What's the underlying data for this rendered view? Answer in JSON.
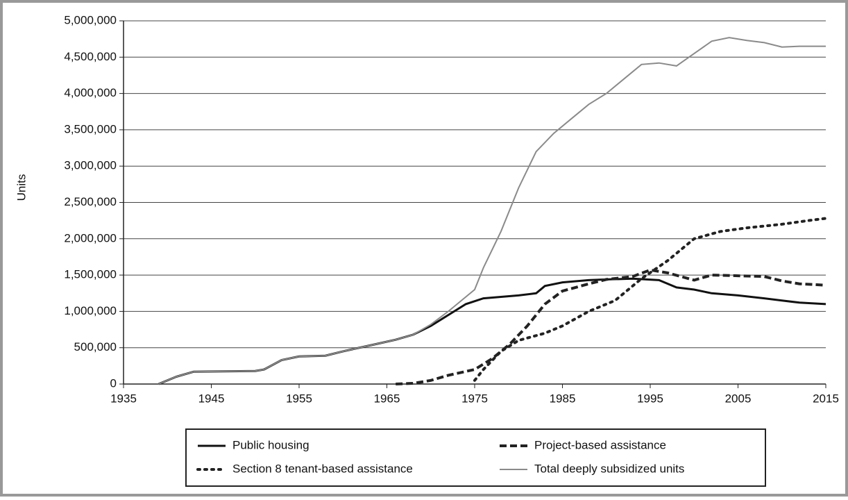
{
  "chart_data": {
    "type": "line",
    "y_label": "Units",
    "xlim": [
      1935,
      2015
    ],
    "xticks": [
      1935,
      1945,
      1955,
      1965,
      1975,
      1985,
      1995,
      2005,
      2015
    ],
    "ylim": [
      0,
      5000000
    ],
    "yticks": [
      0,
      {
        "value": 500000,
        "label": "500,000"
      },
      {
        "value": 1000000,
        "label": "1,000,000"
      },
      {
        "value": 1500000,
        "label": "1,500,000"
      },
      {
        "value": 2000000,
        "label": "2,000,000"
      },
      {
        "value": 2500000,
        "label": "2,500,000"
      },
      {
        "value": 3000000,
        "label": "3,000,000"
      },
      {
        "value": 3500000,
        "label": "3,500,000"
      },
      {
        "value": 4000000,
        "label": "4,000,000"
      },
      {
        "value": 4500000,
        "label": "4,500,000"
      },
      {
        "value": 5000000,
        "label": "5,000,000"
      }
    ],
    "grid": true,
    "legend": "bottom",
    "series": [
      {
        "name": "Public housing",
        "color": "#111111",
        "dash": "solid",
        "width": 3,
        "x": [
          1939,
          1941,
          1943,
          1950,
          1951,
          1953,
          1955,
          1958,
          1960,
          1963,
          1966,
          1968,
          1970,
          1972,
          1974,
          1976,
          1978,
          1980,
          1982,
          1983,
          1985,
          1988,
          1990,
          1993,
          1996,
          1998,
          2000,
          2002,
          2005,
          2008,
          2010,
          2012,
          2015
        ],
        "values": [
          0,
          100000,
          170000,
          180000,
          200000,
          330000,
          380000,
          390000,
          450000,
          530000,
          610000,
          680000,
          800000,
          950000,
          1100000,
          1180000,
          1200000,
          1220000,
          1250000,
          1350000,
          1400000,
          1430000,
          1440000,
          1450000,
          1430000,
          1330000,
          1300000,
          1250000,
          1220000,
          1180000,
          1150000,
          1120000,
          1100000
        ]
      },
      {
        "name": "Project-based assistance",
        "color": "#222222",
        "dash": "dashed",
        "width": 4,
        "x": [
          1966,
          1968,
          1970,
          1972,
          1975,
          1977,
          1979,
          1981,
          1983,
          1985,
          1988,
          1990,
          1993,
          1995,
          1997,
          2000,
          2002,
          2005,
          2008,
          2010,
          2012,
          2015
        ],
        "values": [
          0,
          10000,
          50000,
          120000,
          200000,
          350000,
          550000,
          800000,
          1100000,
          1280000,
          1380000,
          1440000,
          1480000,
          1570000,
          1530000,
          1430000,
          1500000,
          1490000,
          1480000,
          1420000,
          1380000,
          1360000
        ]
      },
      {
        "name": "Section 8 tenant-based assistance",
        "color": "#222222",
        "dash": "dotted",
        "width": 4,
        "x": [
          1975,
          1976,
          1978,
          1980,
          1983,
          1985,
          1988,
          1991,
          1994,
          1997,
          2000,
          2003,
          2006,
          2010,
          2013,
          2015
        ],
        "values": [
          50000,
          200000,
          450000,
          600000,
          700000,
          800000,
          1000000,
          1150000,
          1450000,
          1700000,
          2000000,
          2100000,
          2150000,
          2200000,
          2250000,
          2280000
        ]
      },
      {
        "name": "Total deeply subsidized units",
        "color": "#8a8a8a",
        "dash": "solid",
        "width": 2,
        "x": [
          1939,
          1941,
          1943,
          1950,
          1951,
          1953,
          1955,
          1958,
          1960,
          1963,
          1966,
          1968,
          1970,
          1972,
          1974,
          1975,
          1976,
          1978,
          1980,
          1982,
          1984,
          1986,
          1988,
          1990,
          1992,
          1994,
          1996,
          1998,
          2000,
          2002,
          2004,
          2006,
          2008,
          2010,
          2012,
          2015
        ],
        "values": [
          0,
          100000,
          170000,
          180000,
          200000,
          330000,
          380000,
          390000,
          450000,
          530000,
          610000,
          680000,
          820000,
          1000000,
          1200000,
          1300000,
          1600000,
          2100000,
          2700000,
          3200000,
          3450000,
          3650000,
          3850000,
          4000000,
          4200000,
          4400000,
          4420000,
          4380000,
          4550000,
          4720000,
          4770000,
          4730000,
          4700000,
          4640000,
          4650000,
          4650000
        ]
      }
    ]
  }
}
